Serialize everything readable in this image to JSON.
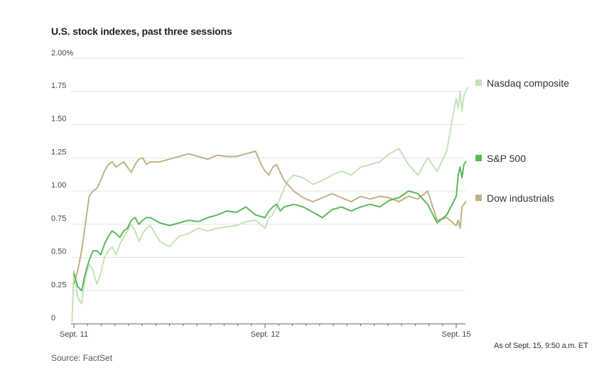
{
  "title": "U.S. stock indexes, past three sessions",
  "note": "As of Sept. 15, 9:50 a.m. ET",
  "source": "Source: FactSet",
  "chart_data": {
    "type": "line",
    "title": "U.S. stock indexes, past three sessions",
    "xlabel": "",
    "ylabel": "",
    "ylim": [
      0,
      2.0
    ],
    "y_ticks": [
      "0",
      "0.25",
      "0.50",
      "0.75",
      "1.00",
      "1.25",
      "1.50",
      "1.75",
      "2.00%"
    ],
    "y_tick_values": [
      0,
      0.25,
      0.5,
      0.75,
      1.0,
      1.25,
      1.5,
      1.75,
      2.0
    ],
    "x_ticks": [
      "Sept. 11",
      "Sept. 12",
      "Sept. 15"
    ],
    "x_tick_values": [
      0,
      1,
      2
    ],
    "xlim": [
      -0.01,
      2.06
    ],
    "grid": true,
    "legend_position": "right",
    "colors": {
      "Nasdaq composite": "#c5e3b8",
      "S&P 500": "#5cb85c",
      "Dow industrials": "#bfb383"
    },
    "series": [
      {
        "name": "Nasdaq composite",
        "x": [
          -0.01,
          0.0,
          0.02,
          0.04,
          0.06,
          0.08,
          0.1,
          0.12,
          0.14,
          0.16,
          0.18,
          0.2,
          0.22,
          0.24,
          0.26,
          0.28,
          0.3,
          0.32,
          0.34,
          0.36,
          0.38,
          0.4,
          0.45,
          0.5,
          0.55,
          0.6,
          0.65,
          0.7,
          0.75,
          0.8,
          0.85,
          0.9,
          0.95,
          1.0,
          1.02,
          1.04,
          1.06,
          1.08,
          1.1,
          1.12,
          1.15,
          1.2,
          1.25,
          1.3,
          1.35,
          1.4,
          1.45,
          1.5,
          1.55,
          1.6,
          1.65,
          1.7,
          1.75,
          1.8,
          1.85,
          1.9,
          1.95,
          2.0,
          2.01,
          2.02,
          2.03,
          2.04,
          2.05,
          2.06
        ],
        "values": [
          0.02,
          0.4,
          0.2,
          0.15,
          0.35,
          0.45,
          0.4,
          0.3,
          0.38,
          0.5,
          0.55,
          0.58,
          0.52,
          0.6,
          0.65,
          0.7,
          0.75,
          0.7,
          0.62,
          0.68,
          0.72,
          0.74,
          0.62,
          0.58,
          0.66,
          0.68,
          0.72,
          0.7,
          0.72,
          0.73,
          0.74,
          0.77,
          0.78,
          0.72,
          0.8,
          0.82,
          0.88,
          0.95,
          1.02,
          1.08,
          1.12,
          1.1,
          1.05,
          1.08,
          1.12,
          1.15,
          1.12,
          1.18,
          1.2,
          1.22,
          1.28,
          1.32,
          1.2,
          1.12,
          1.25,
          1.15,
          1.3,
          1.7,
          1.62,
          1.75,
          1.6,
          1.72,
          1.75,
          1.78
        ]
      },
      {
        "name": "S&P 500",
        "x": [
          0.0,
          0.02,
          0.04,
          0.06,
          0.08,
          0.1,
          0.12,
          0.14,
          0.16,
          0.18,
          0.2,
          0.22,
          0.24,
          0.26,
          0.28,
          0.3,
          0.32,
          0.34,
          0.36,
          0.38,
          0.4,
          0.45,
          0.5,
          0.55,
          0.6,
          0.65,
          0.7,
          0.75,
          0.8,
          0.85,
          0.9,
          0.95,
          1.0,
          1.02,
          1.04,
          1.06,
          1.08,
          1.1,
          1.15,
          1.2,
          1.25,
          1.3,
          1.35,
          1.4,
          1.45,
          1.5,
          1.55,
          1.6,
          1.65,
          1.7,
          1.75,
          1.8,
          1.85,
          1.9,
          1.95,
          2.0,
          2.01,
          2.02,
          2.03,
          2.04,
          2.05
        ],
        "values": [
          0.38,
          0.28,
          0.25,
          0.38,
          0.48,
          0.55,
          0.55,
          0.52,
          0.6,
          0.66,
          0.7,
          0.68,
          0.65,
          0.7,
          0.72,
          0.78,
          0.8,
          0.75,
          0.78,
          0.8,
          0.8,
          0.76,
          0.74,
          0.76,
          0.78,
          0.77,
          0.8,
          0.82,
          0.85,
          0.84,
          0.88,
          0.82,
          0.8,
          0.85,
          0.88,
          0.9,
          0.85,
          0.88,
          0.9,
          0.88,
          0.84,
          0.8,
          0.86,
          0.88,
          0.85,
          0.88,
          0.9,
          0.88,
          0.93,
          0.95,
          1.0,
          0.98,
          0.9,
          0.76,
          0.82,
          0.96,
          1.12,
          1.18,
          1.1,
          1.2,
          1.22
        ]
      },
      {
        "name": "Dow industrials",
        "x": [
          0.0,
          0.02,
          0.04,
          0.06,
          0.08,
          0.1,
          0.12,
          0.14,
          0.16,
          0.18,
          0.2,
          0.22,
          0.24,
          0.26,
          0.28,
          0.3,
          0.32,
          0.34,
          0.36,
          0.38,
          0.4,
          0.45,
          0.5,
          0.55,
          0.6,
          0.65,
          0.7,
          0.75,
          0.8,
          0.85,
          0.9,
          0.95,
          0.98,
          1.0,
          1.02,
          1.04,
          1.06,
          1.08,
          1.1,
          1.15,
          1.2,
          1.25,
          1.3,
          1.35,
          1.4,
          1.45,
          1.5,
          1.55,
          1.6,
          1.65,
          1.7,
          1.75,
          1.8,
          1.85,
          1.9,
          1.95,
          2.0,
          2.01,
          2.02,
          2.03,
          2.04,
          2.05
        ],
        "values": [
          0.3,
          0.4,
          0.55,
          0.75,
          0.96,
          1.0,
          1.02,
          1.08,
          1.15,
          1.2,
          1.22,
          1.18,
          1.2,
          1.22,
          1.18,
          1.14,
          1.2,
          1.24,
          1.25,
          1.2,
          1.22,
          1.22,
          1.24,
          1.26,
          1.28,
          1.26,
          1.24,
          1.27,
          1.26,
          1.26,
          1.28,
          1.3,
          1.2,
          1.15,
          1.12,
          1.18,
          1.2,
          1.14,
          1.08,
          1.0,
          0.95,
          0.92,
          0.95,
          0.98,
          0.95,
          0.92,
          0.96,
          0.94,
          0.96,
          0.95,
          0.92,
          0.96,
          0.94,
          1.0,
          0.78,
          0.8,
          0.74,
          0.78,
          0.72,
          0.88,
          0.9,
          0.92
        ]
      }
    ]
  }
}
